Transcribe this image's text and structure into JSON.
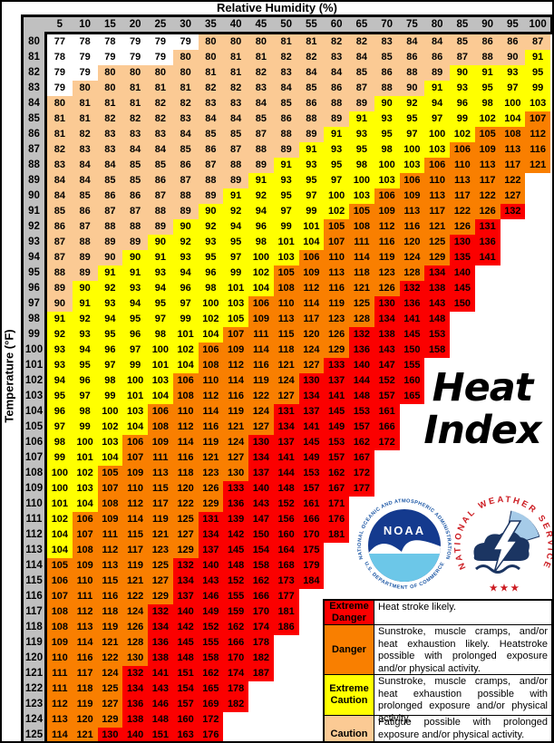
{
  "header": {
    "x_axis_title": "Relative Humidity (%)",
    "y_axis_title": "Temperature (°F)"
  },
  "watermark": {
    "line1": "Heat",
    "line2": "Index"
  },
  "logos": {
    "noaa": {
      "ring_top": "NATIONAL OCEANIC AND ATMOSPHERIC ADMINISTRATION",
      "ring_bottom": "U.S. DEPARTMENT OF COMMERCE",
      "monogram": "NOAA"
    },
    "nws": {
      "ring": "NATIONAL WEATHER SERVICE",
      "stars": "★ ★ ★"
    }
  },
  "legend": {
    "rows": [
      {
        "label": "Extreme Danger",
        "band": "extreme_danger",
        "description": "Heat stroke likely."
      },
      {
        "label": "Danger",
        "band": "danger",
        "description": "Sunstroke, muscle cramps, and/or heat exhaustion likely. Heatstroke possible with prolonged exposure and/or physical activity."
      },
      {
        "label": "Extreme Caution",
        "band": "extreme_caution",
        "description": "Sunstroke, muscle cramps, and/or heat exhaustion possible with prolonged exposure and/or physical activity."
      },
      {
        "label": "Caution",
        "band": "caution",
        "description": "Fatigue possible with prolonged exposure and/or physical activity."
      }
    ]
  },
  "axis_style": {
    "strip_color": "#c0c0c0"
  },
  "chart_data": {
    "type": "heatmap",
    "title": "Heat Index",
    "xlabel": "Relative Humidity (%)",
    "ylabel": "Temperature (°F)",
    "humidity_percent": [
      5,
      10,
      15,
      20,
      25,
      30,
      35,
      40,
      45,
      50,
      55,
      60,
      65,
      70,
      75,
      80,
      85,
      90,
      95,
      100
    ],
    "temperature_f": [
      80,
      81,
      82,
      83,
      84,
      85,
      86,
      87,
      88,
      89,
      90,
      91,
      92,
      93,
      94,
      95,
      96,
      97,
      98,
      99,
      100,
      101,
      102,
      103,
      104,
      105,
      106,
      107,
      108,
      109,
      110,
      111,
      112,
      113,
      114,
      115,
      116,
      117,
      118,
      119,
      120,
      121,
      122,
      123,
      124,
      125
    ],
    "values": [
      [
        77,
        78,
        78,
        79,
        79,
        79,
        80,
        80,
        80,
        81,
        81,
        82,
        82,
        83,
        84,
        84,
        85,
        86,
        86,
        87
      ],
      [
        78,
        79,
        79,
        79,
        79,
        80,
        80,
        81,
        81,
        82,
        82,
        83,
        84,
        85,
        86,
        86,
        87,
        88,
        90,
        91
      ],
      [
        79,
        79,
        80,
        80,
        80,
        80,
        81,
        81,
        82,
        83,
        84,
        84,
        85,
        86,
        88,
        89,
        90,
        91,
        93,
        95
      ],
      [
        79,
        80,
        80,
        81,
        81,
        81,
        82,
        82,
        83,
        84,
        85,
        86,
        87,
        88,
        90,
        91,
        93,
        95,
        97,
        99
      ],
      [
        80,
        81,
        81,
        81,
        82,
        82,
        83,
        83,
        84,
        85,
        86,
        88,
        89,
        90,
        92,
        94,
        96,
        98,
        100,
        103
      ],
      [
        81,
        81,
        82,
        82,
        82,
        83,
        84,
        84,
        85,
        86,
        88,
        89,
        91,
        93,
        95,
        97,
        99,
        102,
        104,
        107
      ],
      [
        81,
        82,
        83,
        83,
        83,
        84,
        85,
        85,
        87,
        88,
        89,
        91,
        93,
        95,
        97,
        100,
        102,
        105,
        108,
        112
      ],
      [
        82,
        83,
        83,
        84,
        84,
        85,
        86,
        87,
        88,
        89,
        91,
        93,
        95,
        98,
        100,
        103,
        106,
        109,
        113,
        116
      ],
      [
        83,
        84,
        84,
        85,
        85,
        86,
        87,
        88,
        89,
        91,
        93,
        95,
        98,
        100,
        103,
        106,
        110,
        113,
        117,
        121
      ],
      [
        84,
        84,
        85,
        85,
        86,
        87,
        88,
        89,
        91,
        93,
        95,
        97,
        100,
        103,
        106,
        110,
        113,
        117,
        122
      ],
      [
        84,
        85,
        86,
        86,
        87,
        88,
        89,
        91,
        92,
        95,
        97,
        100,
        103,
        106,
        109,
        113,
        117,
        122,
        127
      ],
      [
        85,
        86,
        87,
        87,
        88,
        89,
        90,
        92,
        94,
        97,
        99,
        102,
        105,
        109,
        113,
        117,
        122,
        126,
        132
      ],
      [
        86,
        87,
        88,
        88,
        89,
        90,
        92,
        94,
        96,
        99,
        101,
        105,
        108,
        112,
        116,
        121,
        126,
        131
      ],
      [
        87,
        88,
        89,
        89,
        90,
        92,
        93,
        95,
        98,
        101,
        104,
        107,
        111,
        116,
        120,
        125,
        130,
        136
      ],
      [
        87,
        89,
        90,
        90,
        91,
        93,
        95,
        97,
        100,
        103,
        106,
        110,
        114,
        119,
        124,
        129,
        135,
        141
      ],
      [
        88,
        89,
        91,
        91,
        93,
        94,
        96,
        99,
        102,
        105,
        109,
        113,
        118,
        123,
        128,
        134,
        140
      ],
      [
        89,
        90,
        92,
        93,
        94,
        96,
        98,
        101,
        104,
        108,
        112,
        116,
        121,
        126,
        132,
        138,
        145
      ],
      [
        90,
        91,
        93,
        94,
        95,
        97,
        100,
        103,
        106,
        110,
        114,
        119,
        125,
        130,
        136,
        143,
        150
      ],
      [
        91,
        92,
        94,
        95,
        97,
        99,
        102,
        105,
        109,
        113,
        117,
        123,
        128,
        134,
        141,
        148
      ],
      [
        92,
        93,
        95,
        96,
        98,
        101,
        104,
        107,
        111,
        115,
        120,
        126,
        132,
        138,
        145,
        153
      ],
      [
        93,
        94,
        96,
        97,
        100,
        102,
        106,
        109,
        114,
        118,
        124,
        129,
        136,
        143,
        150,
        158
      ],
      [
        93,
        95,
        97,
        99,
        101,
        104,
        108,
        112,
        116,
        121,
        127,
        133,
        140,
        147,
        155
      ],
      [
        94,
        96,
        98,
        100,
        103,
        106,
        110,
        114,
        119,
        124,
        130,
        137,
        144,
        152,
        160
      ],
      [
        95,
        97,
        99,
        101,
        104,
        108,
        112,
        116,
        122,
        127,
        134,
        141,
        148,
        157,
        165
      ],
      [
        96,
        98,
        100,
        103,
        106,
        110,
        114,
        119,
        124,
        131,
        137,
        145,
        153,
        161
      ],
      [
        97,
        99,
        102,
        104,
        108,
        112,
        116,
        121,
        127,
        134,
        141,
        149,
        157,
        166
      ],
      [
        98,
        100,
        103,
        106,
        109,
        114,
        119,
        124,
        130,
        137,
        145,
        153,
        162,
        172
      ],
      [
        99,
        101,
        104,
        107,
        111,
        116,
        121,
        127,
        134,
        141,
        149,
        157,
        167
      ],
      [
        100,
        102,
        105,
        109,
        113,
        118,
        123,
        130,
        137,
        144,
        153,
        162,
        172
      ],
      [
        100,
        103,
        107,
        110,
        115,
        120,
        126,
        133,
        140,
        148,
        157,
        167,
        177
      ],
      [
        101,
        104,
        108,
        112,
        117,
        122,
        129,
        136,
        143,
        152,
        161,
        171
      ],
      [
        102,
        106,
        109,
        114,
        119,
        125,
        131,
        139,
        147,
        156,
        166,
        176
      ],
      [
        104,
        107,
        111,
        115,
        121,
        127,
        134,
        142,
        150,
        160,
        170,
        181
      ],
      [
        104,
        108,
        112,
        117,
        123,
        129,
        137,
        145,
        154,
        164,
        175
      ],
      [
        105,
        109,
        113,
        119,
        125,
        132,
        140,
        148,
        158,
        168,
        179
      ],
      [
        106,
        110,
        115,
        121,
        127,
        134,
        143,
        152,
        162,
        173,
        184
      ],
      [
        107,
        111,
        116,
        122,
        129,
        137,
        146,
        155,
        166,
        177
      ],
      [
        108,
        112,
        118,
        124,
        132,
        140,
        149,
        159,
        170,
        181
      ],
      [
        108,
        113,
        119,
        126,
        134,
        142,
        152,
        162,
        174,
        186
      ],
      [
        109,
        114,
        121,
        128,
        136,
        145,
        155,
        166,
        178
      ],
      [
        110,
        116,
        122,
        130,
        138,
        148,
        158,
        170,
        182
      ],
      [
        111,
        117,
        124,
        132,
        141,
        151,
        162,
        174,
        187
      ],
      [
        111,
        118,
        125,
        134,
        143,
        154,
        165,
        178
      ],
      [
        112,
        119,
        127,
        136,
        146,
        157,
        169,
        182
      ],
      [
        113,
        120,
        129,
        138,
        148,
        160,
        172
      ],
      [
        114,
        121,
        130,
        140,
        151,
        163,
        176
      ]
    ],
    "bands": [
      {
        "name": "none",
        "max": 79,
        "color": "#ffffff",
        "label": ""
      },
      {
        "name": "caution",
        "min": 80,
        "max": 89,
        "color": "#fbca94",
        "label": "Caution"
      },
      {
        "name": "extreme_caution",
        "min": 90,
        "max": 104,
        "color": "#ffff00",
        "label": "Extreme Caution"
      },
      {
        "name": "danger",
        "min": 105,
        "max": 129,
        "color": "#f97f00",
        "label": "Danger"
      },
      {
        "name": "extreme_danger",
        "min": 130,
        "color": "#fb0000",
        "label": "Extreme Danger"
      }
    ],
    "cell_color_exceptions": [
      {
        "temperature": 81,
        "humidity": 95,
        "band": "caution"
      },
      {
        "temperature": 83,
        "humidity": 75,
        "band": "caution"
      },
      {
        "temperature": 94,
        "humidity": 15,
        "band": "caution"
      },
      {
        "temperature": 97,
        "humidity": 5,
        "band": "caution"
      },
      {
        "temperature": 98,
        "humidity": 40,
        "band": "extreme_caution"
      },
      {
        "temperature": 108,
        "humidity": 40,
        "band": "danger"
      },
      {
        "temperature": 120,
        "humidity": 20,
        "band": "danger"
      }
    ],
    "grid": false,
    "legend_position": "bottom-right"
  }
}
